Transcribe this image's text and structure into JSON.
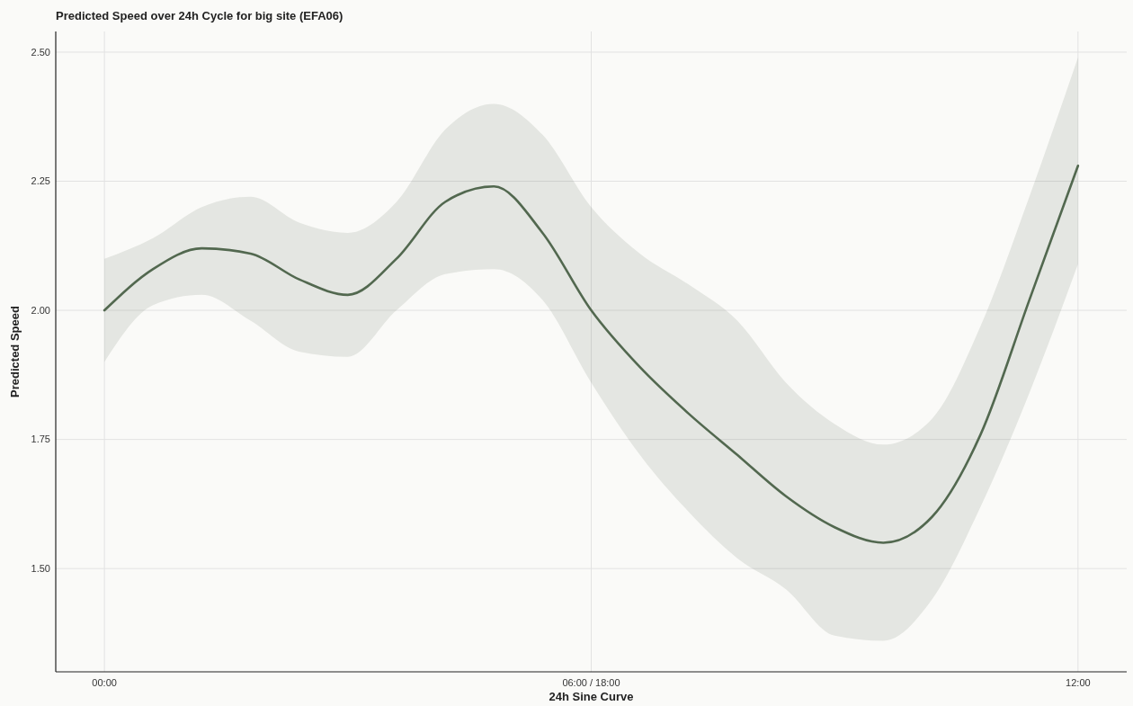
{
  "chart_data": {
    "type": "line",
    "title": "Predicted Speed over 24h Cycle for big site (EFA06)",
    "xlabel": "24h Sine Curve",
    "ylabel": "Predicted Speed",
    "x": [
      0,
      0.6,
      1.2,
      1.8,
      2.4,
      3,
      3.6,
      4.2,
      4.8,
      5.4,
      6,
      6.6,
      7.2,
      7.8,
      8.4,
      9,
      9.6,
      10.2,
      10.8,
      11.4,
      12
    ],
    "series": [
      {
        "color": "#52684f",
        "values": [
          2.0,
          2.08,
          2.12,
          2.11,
          2.06,
          2.03,
          2.1,
          2.21,
          2.24,
          2.15,
          2.0,
          1.89,
          1.8,
          1.72,
          1.64,
          1.58,
          1.55,
          1.6,
          1.76,
          2.02,
          2.28
        ],
        "upper": [
          2.1,
          2.14,
          2.2,
          2.22,
          2.17,
          2.15,
          2.21,
          2.35,
          2.4,
          2.34,
          2.2,
          2.11,
          2.05,
          1.98,
          1.86,
          1.78,
          1.74,
          1.79,
          1.97,
          2.22,
          2.49
        ],
        "lower": [
          1.9,
          2.01,
          2.03,
          1.98,
          1.92,
          1.91,
          2.0,
          2.07,
          2.08,
          2.02,
          1.86,
          1.72,
          1.61,
          1.52,
          1.46,
          1.37,
          1.36,
          1.44,
          1.62,
          1.84,
          2.09
        ]
      }
    ],
    "xlim": [
      -0.6,
      12.6
    ],
    "xticks": [
      {
        "value": 0,
        "label": "00:00"
      },
      {
        "value": 6,
        "label": "06:00 / 18:00"
      },
      {
        "value": 12,
        "label": "12:00"
      }
    ],
    "ylim": [
      1.3,
      2.54
    ],
    "yticks": [
      {
        "value": 1.5,
        "label": "1.50"
      },
      {
        "value": 1.75,
        "label": "1.75"
      },
      {
        "value": 2,
        "label": "2.00"
      },
      {
        "value": 2.25,
        "label": "2.25"
      },
      {
        "value": 2.5,
        "label": "2.50"
      }
    ],
    "grid": true,
    "line_style": "solid",
    "marker": "none"
  }
}
